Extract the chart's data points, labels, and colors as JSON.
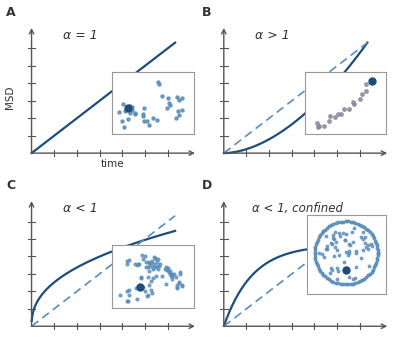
{
  "background_color": "#ffffff",
  "line_color": "#1e4d7a",
  "dashed_color": "#5b8db8",
  "dot_color": "#5b8db8",
  "panel_labels": [
    "A",
    "B",
    "C",
    "D"
  ],
  "panel_titles": [
    "α = 1",
    "α > 1",
    "α < 1",
    "α < 1, confined"
  ],
  "xlabel": "time",
  "ylabel": "MSD",
  "axis_color": "#555555",
  "inset_bg": "#ffffff",
  "inset_edge": "#999999"
}
